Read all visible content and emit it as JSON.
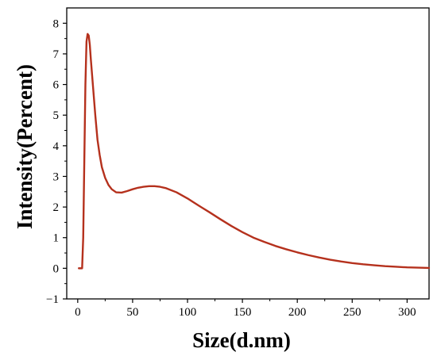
{
  "chart_data": {
    "type": "line",
    "xlabel": "Size(d.nm)",
    "ylabel": "Intensity(Percent)",
    "xlim": [
      -10,
      320
    ],
    "ylim": [
      -1,
      8.5
    ],
    "x_ticks": [
      0,
      50,
      100,
      150,
      200,
      250,
      300
    ],
    "y_ticks": [
      -1,
      0,
      1,
      2,
      3,
      4,
      5,
      6,
      7,
      8
    ],
    "grid": false,
    "line_color": "#b5311d",
    "series": [
      {
        "x": [
          1,
          4,
          5,
          6,
          7,
          8,
          9,
          10,
          11,
          12,
          14,
          16,
          18,
          20,
          22,
          25,
          28,
          31,
          35,
          40,
          45,
          50,
          55,
          60,
          65,
          70,
          75,
          80,
          90,
          100,
          110,
          120,
          130,
          140,
          150,
          160,
          170,
          180,
          190,
          200,
          210,
          220,
          230,
          240,
          250,
          260,
          270,
          280,
          290,
          300,
          310,
          320
        ],
        "y": [
          0,
          0,
          1.0,
          3.5,
          6.0,
          7.4,
          7.65,
          7.6,
          7.3,
          6.8,
          5.9,
          5.0,
          4.2,
          3.7,
          3.3,
          2.95,
          2.72,
          2.58,
          2.48,
          2.47,
          2.52,
          2.58,
          2.63,
          2.66,
          2.68,
          2.68,
          2.66,
          2.62,
          2.48,
          2.28,
          2.05,
          1.83,
          1.6,
          1.38,
          1.18,
          1.0,
          0.86,
          0.73,
          0.62,
          0.52,
          0.43,
          0.35,
          0.28,
          0.22,
          0.17,
          0.13,
          0.1,
          0.07,
          0.05,
          0.03,
          0.02,
          0.01
        ]
      }
    ]
  }
}
